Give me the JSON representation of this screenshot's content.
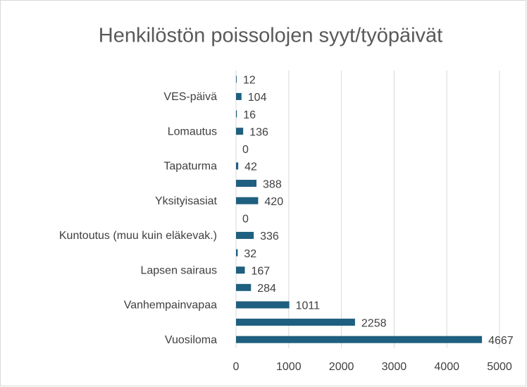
{
  "chart_data": {
    "type": "bar",
    "orientation": "horizontal",
    "title": "Henkilöstön poissolojen syyt/työpäivät",
    "categories": [
      "Vuosiloma",
      null,
      "Vanhempainvapaa",
      null,
      "Lapsen sairaus",
      null,
      "Kuntoutus (muu kuin eläkevak.)",
      null,
      "Yksityisasiat",
      null,
      "Tapaturma",
      null,
      "Lomautus",
      null,
      "VES-päivä",
      null
    ],
    "values": [
      4667,
      2258,
      1011,
      284,
      167,
      32,
      336,
      0,
      420,
      388,
      42,
      0,
      136,
      16,
      104,
      12
    ],
    "color": "#1f5f7f",
    "xlim": [
      0,
      5000
    ],
    "xticks": [
      0,
      1000,
      2000,
      3000,
      4000,
      5000
    ],
    "grid": true
  }
}
